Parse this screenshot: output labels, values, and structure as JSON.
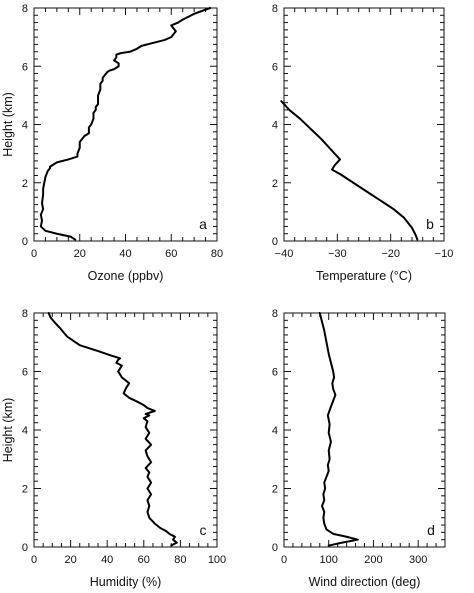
{
  "chart_data": [
    {
      "id": "a",
      "type": "line",
      "letter": "a",
      "xlabel": "Ozone (ppbv)",
      "ylabel": "Height (km)",
      "xlim": [
        0,
        80
      ],
      "ylim": [
        0,
        8
      ],
      "xticks": [
        0,
        20,
        40,
        60,
        80
      ],
      "xminor": 5,
      "yticks": [
        0,
        2,
        4,
        6,
        8
      ],
      "yminor": 0.25,
      "series": [
        {
          "x": [
            18,
            16,
            10,
            5,
            3,
            3.5,
            3,
            4,
            3.5,
            4,
            4,
            4.5,
            5,
            6,
            7,
            7,
            8,
            10,
            15,
            19,
            19,
            20,
            20,
            21,
            22,
            24,
            24,
            25,
            26,
            26,
            27,
            27,
            28,
            28,
            28,
            28,
            29,
            29,
            30,
            30,
            31,
            32,
            33,
            35,
            37,
            37,
            35,
            36,
            36,
            38,
            42,
            45,
            47,
            52,
            57,
            60,
            62,
            60,
            63,
            65,
            70,
            77
          ],
          "y": [
            0.05,
            0.15,
            0.25,
            0.35,
            0.5,
            0.7,
            0.9,
            1.1,
            1.3,
            1.6,
            1.8,
            2.0,
            2.2,
            2.4,
            2.5,
            2.55,
            2.6,
            2.7,
            2.8,
            2.9,
            3.0,
            3.2,
            3.4,
            3.5,
            3.6,
            3.7,
            3.9,
            4.0,
            4.2,
            4.4,
            4.5,
            4.6,
            4.7,
            4.8,
            4.9,
            5.0,
            5.2,
            5.4,
            5.5,
            5.6,
            5.7,
            5.8,
            5.85,
            5.9,
            6.0,
            6.1,
            6.2,
            6.3,
            6.4,
            6.45,
            6.5,
            6.6,
            6.7,
            6.8,
            6.9,
            7.0,
            7.2,
            7.4,
            7.5,
            7.6,
            7.8,
            8.0
          ]
        }
      ]
    },
    {
      "id": "b",
      "type": "line",
      "letter": "b",
      "xlabel": "Temperature (°C)",
      "ylabel": "",
      "xlim": [
        -40,
        -10
      ],
      "ylim": [
        0,
        8
      ],
      "xticks": [
        -40,
        -30,
        -20,
        -10
      ],
      "xminor": 2,
      "yticks": [
        0,
        2,
        4,
        6,
        8
      ],
      "yminor": 0.25,
      "series": [
        {
          "x": [
            -15,
            -15.3,
            -16,
            -17.5,
            -19.5,
            -22,
            -24.5,
            -27,
            -29.5,
            -31,
            -30.5,
            -29.5,
            -30.5,
            -31.5,
            -33,
            -35,
            -37,
            -39,
            -40.5
          ],
          "y": [
            0.05,
            0.2,
            0.45,
            0.8,
            1.1,
            1.4,
            1.7,
            2.0,
            2.3,
            2.45,
            2.6,
            2.8,
            3.0,
            3.2,
            3.5,
            3.85,
            4.2,
            4.5,
            4.8
          ]
        }
      ]
    },
    {
      "id": "c",
      "type": "line",
      "letter": "c",
      "xlabel": "Humidity (%)",
      "ylabel": "Height (km)",
      "xlim": [
        0,
        100
      ],
      "ylim": [
        0,
        8
      ],
      "xticks": [
        0,
        20,
        40,
        60,
        80,
        100
      ],
      "xminor": 5,
      "yticks": [
        0,
        2,
        4,
        6,
        8
      ],
      "yminor": 0.25,
      "series": [
        {
          "x": [
            75,
            78,
            76,
            77,
            74,
            72,
            69,
            66,
            63,
            62,
            63,
            62,
            64,
            62,
            64,
            62,
            63,
            61,
            64,
            62,
            61,
            64,
            61,
            63,
            61,
            62,
            60,
            63,
            61,
            66,
            62,
            60,
            57,
            52,
            49,
            50,
            52,
            48,
            46,
            48,
            45,
            46,
            47,
            42,
            35,
            25,
            18,
            14,
            11,
            9,
            8
          ],
          "y": [
            0.05,
            0.15,
            0.25,
            0.35,
            0.45,
            0.55,
            0.65,
            0.8,
            1.0,
            1.2,
            1.4,
            1.6,
            1.8,
            2.0,
            2.2,
            2.4,
            2.55,
            2.7,
            2.9,
            3.1,
            3.3,
            3.5,
            3.7,
            3.9,
            4.1,
            4.3,
            4.4,
            4.5,
            4.55,
            4.65,
            4.75,
            4.85,
            4.95,
            5.1,
            5.25,
            5.4,
            5.6,
            5.8,
            6.0,
            6.2,
            6.3,
            6.4,
            6.45,
            6.55,
            6.7,
            6.9,
            7.2,
            7.5,
            7.7,
            7.85,
            8.0
          ]
        }
      ]
    },
    {
      "id": "d",
      "type": "line",
      "letter": "d",
      "xlabel": "Wind direction (deg)",
      "ylabel": "",
      "xlim": [
        0,
        360
      ],
      "ylim": [
        0,
        8
      ],
      "xticks": [
        0,
        100,
        200,
        300
      ],
      "xminor": 20,
      "yticks": [
        0,
        2,
        4,
        6,
        8
      ],
      "yminor": 0.25,
      "series": [
        {
          "x": [
            100,
            130,
            165,
            140,
            110,
            95,
            90,
            88,
            90,
            85,
            90,
            88,
            92,
            90,
            95,
            100,
            98,
            102,
            100,
            105,
            100,
            102,
            98,
            105,
            110,
            115,
            110,
            108,
            112,
            110,
            105,
            100,
            95,
            90,
            85,
            80
          ],
          "y": [
            0.05,
            0.15,
            0.25,
            0.35,
            0.45,
            0.6,
            0.8,
            1.0,
            1.2,
            1.4,
            1.6,
            1.8,
            2.0,
            2.2,
            2.4,
            2.6,
            2.8,
            3.0,
            3.3,
            3.6,
            3.9,
            4.2,
            4.5,
            4.8,
            5.0,
            5.2,
            5.4,
            5.6,
            5.8,
            6.0,
            6.3,
            6.6,
            7.0,
            7.4,
            7.7,
            8.0
          ]
        }
      ]
    }
  ]
}
